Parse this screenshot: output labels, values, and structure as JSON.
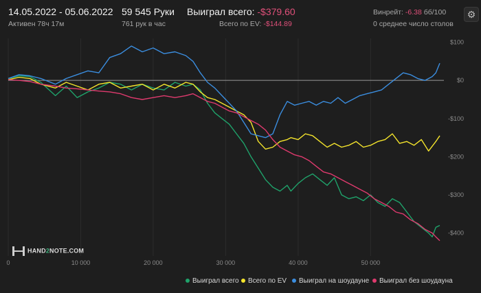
{
  "header": {
    "date_range": "14.05.2022 - 05.06.2022",
    "active": "Активен 78ч 17м",
    "hands": "59 545 Руки",
    "hands_per_hour": "761 рук в час",
    "won_label": "Выиграл всего:",
    "won_value": "-$379.60",
    "ev_label": "Всего по EV:",
    "ev_value": "-$144.89",
    "winrate_label": "Винрейт:",
    "winrate_value": "-6.38",
    "winrate_unit": "бб/100",
    "tables": "0 среднее число столов"
  },
  "logo": {
    "prefix": "HAND",
    "mid": "2",
    "suffix": "NOTE.COM"
  },
  "colors": {
    "bg": "#1e1e1e",
    "total": "#1fa36b",
    "ev": "#f5e52c",
    "showdown": "#3b8ee0",
    "nonshowdown": "#e03a6e",
    "negative": "#e0507a"
  },
  "chart_data": {
    "type": "line",
    "xlim": [
      0,
      59545
    ],
    "ylim": [
      -460,
      110
    ],
    "x_ticks": [
      0,
      10000,
      20000,
      30000,
      40000,
      50000
    ],
    "x_tick_labels": [
      "0",
      "10 000",
      "20 000",
      "30 000",
      "40 000",
      "50 000"
    ],
    "y_ticks": [
      100,
      0,
      -100,
      -200,
      -300,
      -400
    ],
    "y_tick_labels": [
      "$100",
      "$0",
      "-$100",
      "-$200",
      "-$300",
      "-$400"
    ],
    "grid": "vertical",
    "legend_position": "bottom-right",
    "series": [
      {
        "name": "Выиграл всего",
        "color_key": "total",
        "points": [
          [
            0,
            5
          ],
          [
            1500,
            12
          ],
          [
            3000,
            10
          ],
          [
            4500,
            -5
          ],
          [
            6500,
            -40
          ],
          [
            8000,
            -15
          ],
          [
            9500,
            -45
          ],
          [
            11000,
            -30
          ],
          [
            12500,
            -20
          ],
          [
            14000,
            -5
          ],
          [
            15500,
            -10
          ],
          [
            17000,
            -25
          ],
          [
            18500,
            -10
          ],
          [
            20000,
            -20
          ],
          [
            21500,
            -25
          ],
          [
            23000,
            -5
          ],
          [
            24500,
            -15
          ],
          [
            25500,
            -10
          ],
          [
            26500,
            -25
          ],
          [
            27500,
            -60
          ],
          [
            28500,
            -85
          ],
          [
            29500,
            -100
          ],
          [
            30500,
            -115
          ],
          [
            31500,
            -140
          ],
          [
            32500,
            -165
          ],
          [
            33500,
            -200
          ],
          [
            34500,
            -230
          ],
          [
            35500,
            -260
          ],
          [
            36500,
            -280
          ],
          [
            37500,
            -290
          ],
          [
            38500,
            -275
          ],
          [
            39000,
            -290
          ],
          [
            40000,
            -270
          ],
          [
            41000,
            -255
          ],
          [
            42000,
            -245
          ],
          [
            43000,
            -260
          ],
          [
            44000,
            -275
          ],
          [
            45000,
            -255
          ],
          [
            46000,
            -300
          ],
          [
            47000,
            -310
          ],
          [
            48000,
            -305
          ],
          [
            49000,
            -315
          ],
          [
            50000,
            -300
          ],
          [
            51000,
            -320
          ],
          [
            52000,
            -330
          ],
          [
            53000,
            -310
          ],
          [
            54000,
            -320
          ],
          [
            55000,
            -345
          ],
          [
            56000,
            -370
          ],
          [
            57000,
            -385
          ],
          [
            58000,
            -400
          ],
          [
            58500,
            -410
          ],
          [
            59000,
            -385
          ],
          [
            59545,
            -380
          ]
        ]
      },
      {
        "name": "Всего по EV",
        "color_key": "ev",
        "points": [
          [
            0,
            2
          ],
          [
            1500,
            8
          ],
          [
            3000,
            5
          ],
          [
            4500,
            -10
          ],
          [
            6500,
            -20
          ],
          [
            8000,
            -5
          ],
          [
            9500,
            -15
          ],
          [
            11000,
            -25
          ],
          [
            12500,
            -10
          ],
          [
            14000,
            -5
          ],
          [
            15500,
            -20
          ],
          [
            17000,
            -15
          ],
          [
            18500,
            -10
          ],
          [
            20000,
            -25
          ],
          [
            21500,
            -10
          ],
          [
            23000,
            -20
          ],
          [
            24500,
            -5
          ],
          [
            25500,
            -10
          ],
          [
            26500,
            -30
          ],
          [
            27500,
            -45
          ],
          [
            28500,
            -50
          ],
          [
            29500,
            -60
          ],
          [
            30500,
            -70
          ],
          [
            31500,
            -80
          ],
          [
            32500,
            -90
          ],
          [
            33500,
            -110
          ],
          [
            34500,
            -160
          ],
          [
            35500,
            -180
          ],
          [
            36500,
            -175
          ],
          [
            37500,
            -160
          ],
          [
            38500,
            -155
          ],
          [
            39000,
            -150
          ],
          [
            40000,
            -155
          ],
          [
            41000,
            -140
          ],
          [
            42000,
            -145
          ],
          [
            43000,
            -160
          ],
          [
            44000,
            -175
          ],
          [
            45000,
            -165
          ],
          [
            46000,
            -175
          ],
          [
            47000,
            -170
          ],
          [
            48000,
            -160
          ],
          [
            49000,
            -175
          ],
          [
            50000,
            -170
          ],
          [
            51000,
            -160
          ],
          [
            52000,
            -155
          ],
          [
            53000,
            -140
          ],
          [
            54000,
            -165
          ],
          [
            55000,
            -160
          ],
          [
            56000,
            -170
          ],
          [
            57000,
            -155
          ],
          [
            58000,
            -185
          ],
          [
            59000,
            -160
          ],
          [
            59545,
            -145
          ]
        ]
      },
      {
        "name": "Выиграл на шоудауне",
        "color_key": "showdown",
        "points": [
          [
            0,
            5
          ],
          [
            1500,
            15
          ],
          [
            3000,
            12
          ],
          [
            4500,
            5
          ],
          [
            6500,
            -10
          ],
          [
            8000,
            5
          ],
          [
            9500,
            15
          ],
          [
            11000,
            25
          ],
          [
            12500,
            20
          ],
          [
            14000,
            60
          ],
          [
            15500,
            70
          ],
          [
            17000,
            90
          ],
          [
            18500,
            75
          ],
          [
            20000,
            85
          ],
          [
            21500,
            70
          ],
          [
            23000,
            75
          ],
          [
            24500,
            65
          ],
          [
            25500,
            50
          ],
          [
            26500,
            20
          ],
          [
            27500,
            -5
          ],
          [
            28500,
            -20
          ],
          [
            29500,
            -40
          ],
          [
            30500,
            -60
          ],
          [
            31500,
            -80
          ],
          [
            32500,
            -110
          ],
          [
            33500,
            -140
          ],
          [
            34500,
            -145
          ],
          [
            35500,
            -150
          ],
          [
            36500,
            -140
          ],
          [
            37500,
            -90
          ],
          [
            38500,
            -55
          ],
          [
            39500,
            -65
          ],
          [
            40500,
            -60
          ],
          [
            41500,
            -55
          ],
          [
            42500,
            -65
          ],
          [
            43500,
            -55
          ],
          [
            44500,
            -60
          ],
          [
            45500,
            -45
          ],
          [
            46500,
            -60
          ],
          [
            47500,
            -50
          ],
          [
            48500,
            -40
          ],
          [
            49500,
            -35
          ],
          [
            50500,
            -30
          ],
          [
            51500,
            -25
          ],
          [
            52500,
            -10
          ],
          [
            53500,
            5
          ],
          [
            54500,
            20
          ],
          [
            55500,
            15
          ],
          [
            56500,
            5
          ],
          [
            57500,
            0
          ],
          [
            58500,
            10
          ],
          [
            59000,
            20
          ],
          [
            59545,
            45
          ]
        ]
      },
      {
        "name": "Выиграл без шоудауна",
        "color_key": "nonshowdown",
        "points": [
          [
            0,
            2
          ],
          [
            1500,
            0
          ],
          [
            3000,
            -3
          ],
          [
            4500,
            -10
          ],
          [
            6500,
            -15
          ],
          [
            8000,
            -20
          ],
          [
            9500,
            -22
          ],
          [
            11000,
            -25
          ],
          [
            12500,
            -28
          ],
          [
            14000,
            -30
          ],
          [
            15500,
            -35
          ],
          [
            17000,
            -45
          ],
          [
            18500,
            -50
          ],
          [
            20000,
            -45
          ],
          [
            21500,
            -40
          ],
          [
            23000,
            -45
          ],
          [
            24500,
            -40
          ],
          [
            25500,
            -35
          ],
          [
            26500,
            -45
          ],
          [
            27500,
            -55
          ],
          [
            28500,
            -60
          ],
          [
            29500,
            -70
          ],
          [
            30500,
            -80
          ],
          [
            31500,
            -85
          ],
          [
            32500,
            -95
          ],
          [
            33500,
            -105
          ],
          [
            34500,
            -115
          ],
          [
            35500,
            -130
          ],
          [
            36500,
            -155
          ],
          [
            37500,
            -175
          ],
          [
            38500,
            -185
          ],
          [
            39500,
            -195
          ],
          [
            40500,
            -200
          ],
          [
            41500,
            -210
          ],
          [
            42500,
            -225
          ],
          [
            43500,
            -240
          ],
          [
            44500,
            -245
          ],
          [
            45500,
            -255
          ],
          [
            46500,
            -265
          ],
          [
            47500,
            -275
          ],
          [
            48500,
            -285
          ],
          [
            49500,
            -295
          ],
          [
            50500,
            -310
          ],
          [
            51500,
            -320
          ],
          [
            52500,
            -330
          ],
          [
            53500,
            -345
          ],
          [
            54500,
            -350
          ],
          [
            55500,
            -365
          ],
          [
            56500,
            -375
          ],
          [
            57500,
            -390
          ],
          [
            58500,
            -400
          ],
          [
            59000,
            -410
          ],
          [
            59545,
            -420
          ]
        ]
      }
    ]
  }
}
